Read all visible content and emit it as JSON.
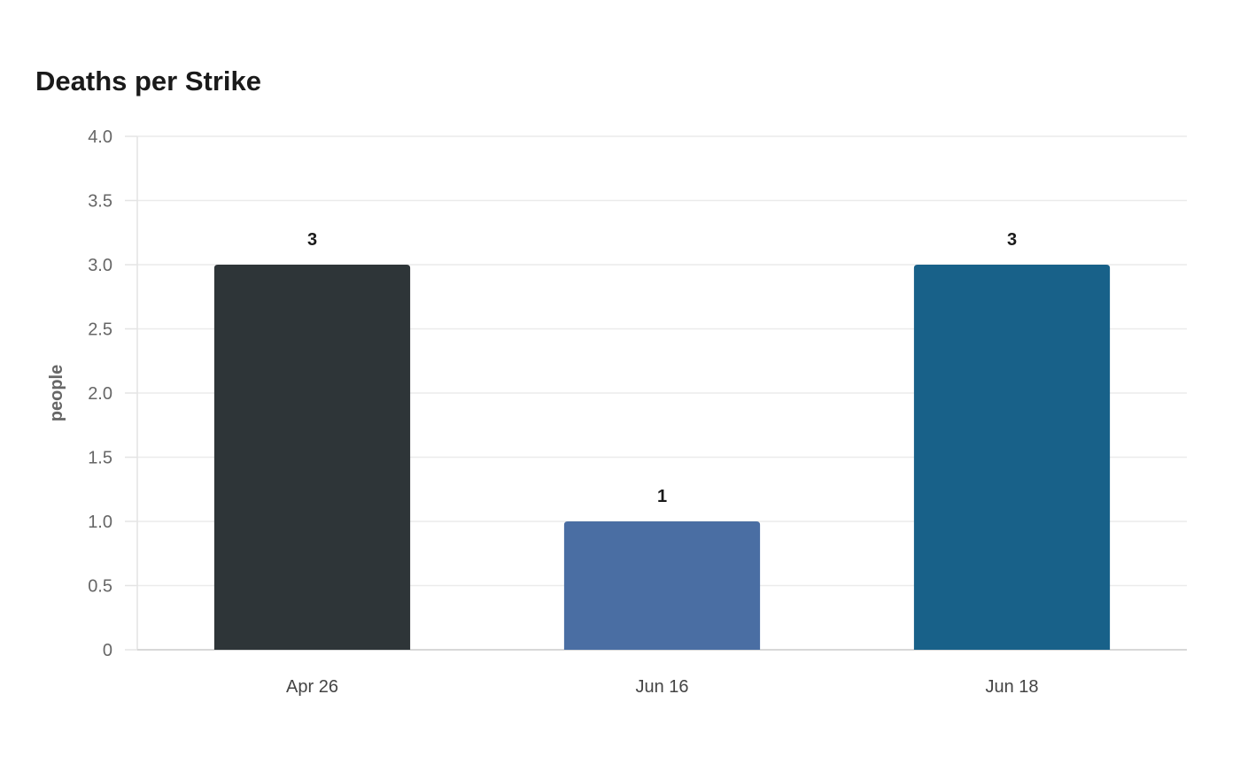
{
  "chart_data": {
    "type": "bar",
    "title": "Deaths per Strike",
    "xlabel": "",
    "ylabel": "people",
    "categories": [
      "Apr 26",
      "Jun 16",
      "Jun 18"
    ],
    "values": [
      3,
      1,
      3
    ],
    "data_labels": [
      "3",
      "1",
      "3"
    ],
    "bar_colors": [
      "#2e3538",
      "#4a6ea3",
      "#186189"
    ],
    "ylim": [
      0,
      4
    ],
    "yticks": [
      0,
      0.5,
      1,
      1.5,
      2,
      2.5,
      3,
      3.5,
      4
    ],
    "ytick_labels": [
      "0",
      "0.5",
      "1.0",
      "1.5",
      "2.0",
      "2.5",
      "3.0",
      "3.5",
      "4.0"
    ],
    "grid": true,
    "legend": "none"
  }
}
